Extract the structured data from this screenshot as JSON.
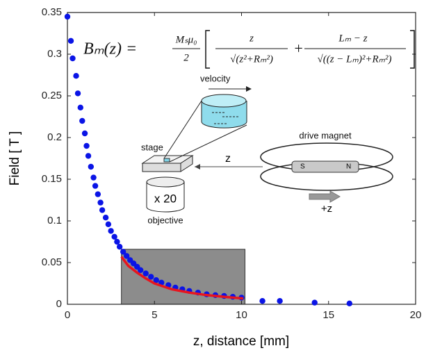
{
  "chart_data": {
    "type": "scatter",
    "xlabel": "z, distance [mm]",
    "ylabel": "Field [ T ]",
    "xlim": [
      0,
      20
    ],
    "xticks": [
      0,
      5,
      10,
      15,
      20
    ],
    "ylim": [
      0,
      0.35
    ],
    "yticks": [
      0,
      0.05,
      0.1,
      0.15,
      0.2,
      0.25,
      0.3,
      0.35
    ],
    "series": [
      {
        "type": "scatter",
        "color": "#0a14e6",
        "x": [
          0,
          0.2,
          0.3,
          0.5,
          0.6,
          0.75,
          0.85,
          1.0,
          1.1,
          1.2,
          1.35,
          1.5,
          1.6,
          1.75,
          1.9,
          2.0,
          2.2,
          2.35,
          2.5,
          2.7,
          2.85,
          3.0,
          3.2,
          3.4,
          3.6,
          3.8,
          4.0,
          4.2,
          4.5,
          4.8,
          5.1,
          5.4,
          5.8,
          6.2,
          6.6,
          7.0,
          7.5,
          8.0,
          8.5,
          9.0,
          9.5,
          10.0,
          11.2,
          12.2,
          14.2,
          16.2
        ],
        "values": [
          0.345,
          0.316,
          0.295,
          0.274,
          0.253,
          0.236,
          0.22,
          0.205,
          0.19,
          0.178,
          0.165,
          0.152,
          0.142,
          0.132,
          0.122,
          0.113,
          0.104,
          0.096,
          0.088,
          0.081,
          0.075,
          0.069,
          0.063,
          0.058,
          0.053,
          0.049,
          0.045,
          0.041,
          0.037,
          0.033,
          0.029,
          0.026,
          0.023,
          0.02,
          0.018,
          0.016,
          0.014,
          0.012,
          0.011,
          0.01,
          0.009,
          0.008,
          0.004,
          0.004,
          0.002,
          0.001
        ]
      },
      {
        "type": "line",
        "color": "#e8141e",
        "x": [
          3.1,
          3.5,
          4,
          4.5,
          5,
          6,
          7,
          8,
          9,
          10.1
        ],
        "values": [
          0.057,
          0.046,
          0.038,
          0.031,
          0.025,
          0.018,
          0.014,
          0.011,
          0.009,
          0.007
        ]
      }
    ],
    "shaded_region": {
      "color": "#8c8c8c",
      "xlim": [
        3.1,
        10.2
      ],
      "ylim": [
        0,
        0.066
      ]
    },
    "equation": {
      "lhs": "Bₘ(z) =",
      "f1_num": "Mₛμ₀",
      "f1_den": "2",
      "f2_num": "z",
      "f2_den": "√(z²+Rₘ²)",
      "plus": "+",
      "f3_num": "Lₘ − z",
      "f3_den": "√((z − Lₘ)²+Rₘ²)"
    },
    "inset": {
      "velocity": "velocity",
      "stage": "stage",
      "objective_mag": "x 20",
      "objective": "objective",
      "drive_magnet": "drive magnet",
      "z": "z",
      "south": "S",
      "north": "N",
      "direction": "+z"
    }
  }
}
